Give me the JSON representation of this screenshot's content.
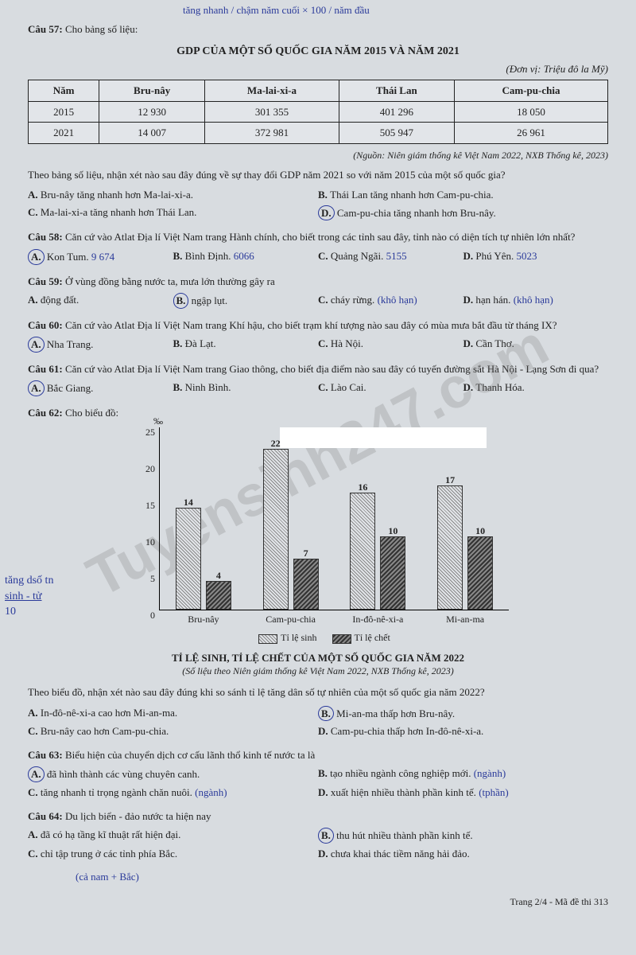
{
  "watermark": "Tuyensinh247.com",
  "q57": {
    "header": "Câu 57:",
    "intro": "Cho bảng số liệu:",
    "title": "GDP CỦA MỘT SỐ QUỐC GIA NĂM 2015 VÀ NĂM 2021",
    "unit": "(Đơn vị: Triệu đô la Mỹ)",
    "table": {
      "columns": [
        "Năm",
        "Bru-nây",
        "Ma-lai-xi-a",
        "Thái Lan",
        "Cam-pu-chia"
      ],
      "rows": [
        [
          "2015",
          "12 930",
          "301 355",
          "401 296",
          "18 050"
        ],
        [
          "2021",
          "14 007",
          "372 981",
          "505 947",
          "26 961"
        ]
      ]
    },
    "source": "(Nguồn: Niên giám thống kê Việt Nam 2022, NXB Thống kê, 2023)",
    "prompt": "Theo bảng số liệu, nhận xét nào sau đây đúng về sự thay đổi GDP năm 2021 so với năm 2015 của một số quốc gia?",
    "opts": {
      "A": "Bru-nây tăng nhanh hơn Ma-lai-xi-a.",
      "B": "Thái Lan tăng nhanh hơn Cam-pu-chia.",
      "C": "Ma-lai-xi-a tăng nhanh hơn Thái Lan.",
      "D": "Cam-pu-chia tăng nhanh hơn Bru-nây."
    }
  },
  "q58": {
    "header": "Câu 58:",
    "prompt": "Căn cứ vào Atlat Địa lí Việt Nam trang Hành chính, cho biết trong các tỉnh sau đây, tỉnh nào có diện tích tự nhiên lớn nhất?",
    "opts": {
      "A": "Kon Tum.",
      "B": "Bình Định.",
      "C": "Quảng Ngãi.",
      "D": "Phú Yên."
    },
    "hand": {
      "A": "9 674",
      "B": "6066",
      "C": "5155",
      "D": "5023"
    }
  },
  "q59": {
    "header": "Câu 59:",
    "prompt": "Ở vùng đồng bằng nước ta, mưa lớn thường gây ra",
    "opts": {
      "A": "động đất.",
      "B": "ngập lụt.",
      "C": "cháy rừng.",
      "D": "hạn hán."
    }
  },
  "q60": {
    "header": "Câu 60:",
    "prompt": "Căn cứ vào Atlat Địa lí Việt Nam trang Khí hậu, cho biết trạm khí tượng nào sau đây có mùa mưa bắt đầu từ tháng IX?",
    "opts": {
      "A": "Nha Trang.",
      "B": "Đà Lạt.",
      "C": "Hà Nội.",
      "D": "Cần Thơ."
    }
  },
  "q61": {
    "header": "Câu 61:",
    "prompt": "Căn cứ vào Atlat Địa lí Việt Nam trang Giao thông, cho biết địa điểm nào sau đây có tuyến đường sắt Hà Nội - Lạng Sơn đi qua?",
    "opts": {
      "A": "Bắc Giang.",
      "B": "Ninh Bình.",
      "C": "Lào Cai.",
      "D": "Thanh Hóa."
    }
  },
  "q62": {
    "header": "Câu 62:",
    "intro": "Cho biểu đồ:",
    "chart": {
      "ylabel": "‰",
      "ymax": 25,
      "ytick_step": 5,
      "categories": [
        "Bru-nây",
        "Cam-pu-chia",
        "In-đô-nê-xi-a",
        "Mi-an-ma"
      ],
      "series": [
        {
          "name": "Tỉ lệ sinh",
          "class": "birth",
          "values": [
            14,
            22,
            16,
            17
          ]
        },
        {
          "name": "Tỉ lệ chết",
          "class": "death",
          "values": [
            4,
            7,
            10,
            10
          ]
        }
      ],
      "legend_birth": "Tỉ lệ sinh",
      "legend_death": "Tỉ lệ chết"
    },
    "chart_title": "TỈ LỆ SINH, TỈ LỆ CHẾT CỦA MỘT SỐ QUỐC GIA NĂM 2022",
    "chart_source": "(Số liệu theo Niên giám thống kê Việt Nam 2022, NXB Thống kê, 2023)",
    "prompt": "Theo biểu đồ, nhận xét nào sau đây đúng khi so sánh tỉ lệ tăng dân số tự nhiên của một số quốc gia năm 2022?",
    "opts": {
      "A": "In-đô-nê-xi-a cao hơn Mi-an-ma.",
      "B": "Mi-an-ma thấp hơn Bru-nây.",
      "C": "Bru-nây cao hơn Cam-pu-chia.",
      "D": "Cam-pu-chia thấp hơn In-đô-nê-xi-a."
    }
  },
  "q63": {
    "header": "Câu 63:",
    "prompt": "Biểu hiện của chuyển dịch cơ cấu lãnh thổ kinh tế nước ta là",
    "opts": {
      "A": "đã hình thành các vùng chuyên canh.",
      "B": "tạo nhiều ngành công nghiệp mới.",
      "C": "tăng nhanh tỉ trọng ngành chăn nuôi.",
      "D": "xuất hiện nhiều thành phần kinh tế."
    }
  },
  "q64": {
    "header": "Câu 64:",
    "prompt": "Du lịch biển - đảo nước ta hiện nay",
    "opts": {
      "A": "đã có hạ tầng kĩ thuật rất hiện đại.",
      "B": "thu hút nhiều thành phần kinh tế.",
      "C": "chỉ tập trung ở các tỉnh phía Bắc.",
      "D": "chưa khai thác tiềm năng hải đảo."
    }
  },
  "footer": "Trang 2/4 - Mã đề thi 313",
  "leftnote": [
    "tăng dsố tn",
    "sinh - tử",
    "10"
  ],
  "topnote": "tăng nhanh / chậm   năm cuối × 100 / năm đầu"
}
